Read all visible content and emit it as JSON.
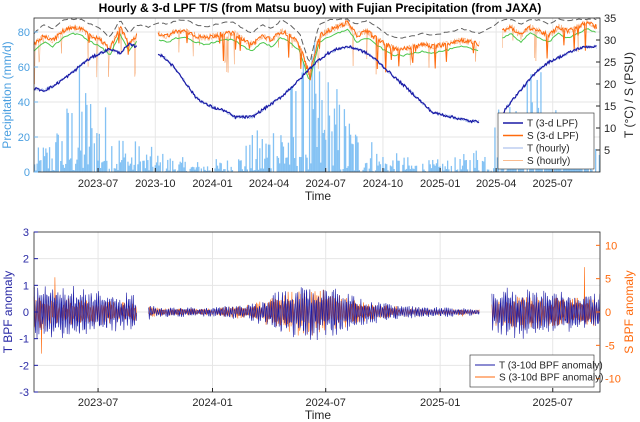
{
  "chart_data": [
    {
      "type": "line",
      "title": "Hourly & 3-d LPF T/S (from Matsu buoy) with Fujian Precipitation (from JAXA)",
      "xlabel": "Time",
      "ylabel_left": "Precipitation (mm/d)",
      "ylabel_right": "T (°C) / S (PSU)",
      "xlim": [
        "2023-03-20",
        "2025-09-15"
      ],
      "xticks": [
        "2023-07",
        "2023-10",
        "2024-01",
        "2024-04",
        "2024-07",
        "2024-10",
        "2025-01",
        "2025-04",
        "2025-07"
      ],
      "ylim_left": [
        0,
        88
      ],
      "yticks_left": [
        "0",
        "20",
        "40",
        "60",
        "80"
      ],
      "ylim_right": [
        0,
        35
      ],
      "yticks_right": [
        "5",
        "10",
        "15",
        "20",
        "25",
        "30",
        "35"
      ],
      "grid": true,
      "legend_position": "lower-right",
      "legend": [
        "T (3-d LPF)",
        "S (3-d LPF)",
        "T (hourly)",
        "S (hourly)"
      ],
      "colors": {
        "precip": "#6fb7f2",
        "temp": "#1a1aa6",
        "sal": "#ff6a0d",
        "envelope": "#606060",
        "green": "#4dc74d"
      },
      "series": [
        {
          "name": "T (3-d LPF)",
          "x": [
            "2023-03-20",
            "2023-04-05",
            "2023-04-20",
            "2023-05-05",
            "2023-05-20",
            "2023-06-05",
            "2023-06-20",
            "2023-07-05",
            "2023-07-20",
            "2023-08-05",
            "2023-08-20",
            "2023-09-01",
            "2023-09-20",
            "2023-10-05",
            "2023-10-20",
            "2023-11-05",
            "2023-11-20",
            "2023-12-05",
            "2023-12-20",
            "2024-01-05",
            "2024-01-20",
            "2024-02-05",
            "2024-02-20",
            "2024-03-05",
            "2024-03-20",
            "2024-04-05",
            "2024-04-20",
            "2024-05-05",
            "2024-05-20",
            "2024-06-05",
            "2024-06-20",
            "2024-07-05",
            "2024-07-20",
            "2024-08-05",
            "2024-08-20",
            "2024-09-05",
            "2024-09-20",
            "2024-10-05",
            "2024-10-20",
            "2024-11-05",
            "2024-11-20",
            "2024-12-05",
            "2024-12-20",
            "2025-01-05",
            "2025-01-20",
            "2025-02-05",
            "2025-02-20",
            "2025-03-05",
            "2025-03-25",
            "2025-04-10",
            "2025-04-25",
            "2025-05-10",
            "2025-05-25",
            "2025-06-10",
            "2025-06-25",
            "2025-07-10",
            "2025-07-25",
            "2025-08-10",
            "2025-08-25",
            "2025-09-10"
          ],
          "y": [
            19,
            18.5,
            19.5,
            21,
            22.5,
            24.5,
            26,
            27,
            28,
            27,
            29,
            28.5,
            null,
            27,
            25.5,
            23,
            20,
            17,
            15.5,
            14.5,
            14,
            12.5,
            12.5,
            12.5,
            14,
            15.5,
            17,
            19,
            21,
            23.5,
            25.5,
            27,
            28,
            28.5,
            28,
            27,
            25.5,
            23.5,
            21.5,
            19.5,
            17.5,
            15.5,
            13.5,
            13,
            12.5,
            12,
            11.5,
            11.5,
            null,
            13,
            16,
            18.5,
            21,
            23.5,
            25,
            26,
            27,
            28,
            28.5,
            28.5
          ]
        },
        {
          "name": "S (3-d LPF)",
          "x": [
            "2023-03-20",
            "2023-04-05",
            "2023-04-20",
            "2023-05-05",
            "2023-05-20",
            "2023-06-05",
            "2023-06-20",
            "2023-07-05",
            "2023-07-20",
            "2023-08-05",
            "2023-08-20",
            "2023-09-01",
            "2023-09-20",
            "2023-10-05",
            "2023-10-20",
            "2023-11-05",
            "2023-11-20",
            "2023-12-05",
            "2023-12-20",
            "2024-01-05",
            "2024-01-20",
            "2024-02-05",
            "2024-02-20",
            "2024-03-05",
            "2024-03-20",
            "2024-04-05",
            "2024-04-20",
            "2024-05-05",
            "2024-05-20",
            "2024-06-05",
            "2024-06-20",
            "2024-07-05",
            "2024-07-20",
            "2024-08-05",
            "2024-08-20",
            "2024-09-05",
            "2024-09-20",
            "2024-10-05",
            "2024-10-20",
            "2024-11-05",
            "2024-11-20",
            "2024-12-05",
            "2024-12-20",
            "2025-01-05",
            "2025-01-20",
            "2025-02-05",
            "2025-02-20",
            "2025-03-05",
            "2025-03-25",
            "2025-04-10",
            "2025-04-25",
            "2025-05-10",
            "2025-05-25",
            "2025-06-10",
            "2025-06-25",
            "2025-07-10",
            "2025-07-25",
            "2025-08-10",
            "2025-08-25",
            "2025-09-10"
          ],
          "y": [
            29,
            31,
            30,
            32,
            33,
            32.5,
            31,
            30,
            28,
            33,
            29,
            31,
            null,
            31.5,
            31,
            32,
            32,
            31,
            30.5,
            31,
            31.5,
            31.5,
            30,
            29,
            31,
            30,
            32,
            31,
            29,
            22,
            31,
            32,
            33,
            34,
            31,
            32,
            30.5,
            29,
            28,
            28,
            28.5,
            29,
            28.5,
            29,
            29.5,
            30,
            29.5,
            29,
            null,
            32,
            33,
            31,
            33,
            32,
            31,
            33,
            32,
            33,
            34,
            33
          ]
        },
        {
          "name": "T (hourly)",
          "x": [
            "2023-03-20",
            "2023-05-20",
            "2023-07-20",
            "2023-09-01",
            "2023-09-20",
            "2024-01-20",
            "2024-04-05",
            "2024-07-20",
            "2024-10-05",
            "2025-01-20",
            "2025-03-05",
            "2025-03-25",
            "2025-05-10",
            "2025-07-25",
            "2025-09-10"
          ],
          "y": [
            19,
            22.5,
            28,
            28.5,
            null,
            14,
            15.5,
            28,
            23.5,
            12.5,
            11.5,
            null,
            18.5,
            27,
            28.5
          ]
        },
        {
          "name": "S (hourly)",
          "x": [
            "2023-03-20",
            "2023-05-20",
            "2023-07-20",
            "2023-09-01",
            "2023-09-20",
            "2024-01-20",
            "2024-04-05",
            "2024-06-05",
            "2024-07-20",
            "2024-10-05",
            "2025-01-20",
            "2025-03-05",
            "2025-03-25",
            "2025-05-10",
            "2025-07-25",
            "2025-09-10"
          ],
          "y": [
            29,
            33,
            28,
            31,
            null,
            31.5,
            30,
            20,
            33,
            29,
            29.5,
            29,
            null,
            31,
            32,
            33
          ]
        }
      ],
      "precip_daily_profile": {
        "x": [
          "2023-03-20",
          "2023-05-01",
          "2023-06-01",
          "2023-07-01",
          "2023-08-15",
          "2023-10-01",
          "2023-12-01",
          "2024-02-01",
          "2024-03-15",
          "2024-04-15",
          "2024-05-15",
          "2024-06-15",
          "2024-07-15",
          "2024-08-15",
          "2024-10-01",
          "2024-12-01",
          "2025-02-01",
          "2025-03-15",
          "2025-04-15",
          "2025-05-15",
          "2025-06-15",
          "2025-07-15",
          "2025-08-15",
          "2025-09-15"
        ],
        "y": [
          5,
          15,
          30,
          22,
          10,
          6,
          3,
          4,
          12,
          20,
          28,
          35,
          25,
          15,
          6,
          3,
          4,
          10,
          25,
          30,
          28,
          18,
          12,
          8
        ]
      }
    },
    {
      "type": "line",
      "title": "",
      "xlabel": "Time",
      "ylabel_left": "T BPF anomaly",
      "ylabel_right": "S BPF anomaly",
      "xlim": [
        "2023-03-20",
        "2025-09-15"
      ],
      "xticks": [
        "2023-07",
        "2024-01",
        "2024-07",
        "2025-01",
        "2025-07"
      ],
      "ylim_left": [
        -3,
        3
      ],
      "yticks_left": [
        "-3",
        "-2",
        "-1",
        "0",
        "1",
        "2",
        "3"
      ],
      "ylim_right": [
        -12,
        12
      ],
      "yticks_right": [
        "-10",
        "-5",
        "0",
        "5",
        "10"
      ],
      "grid": true,
      "legend_position": "lower-right",
      "legend": [
        "T (3-10d BPF anomaly)",
        "S (3-10d BPF anomaly)"
      ],
      "colors": {
        "t": "#1a1aa6",
        "s": "#ff6a0d"
      },
      "amplitude_envelope": {
        "x": [
          "2023-03-20",
          "2023-05-01",
          "2023-07-01",
          "2023-08-15",
          "2023-09-01",
          "2023-10-01",
          "2024-01-01",
          "2024-03-01",
          "2024-04-15",
          "2024-06-01",
          "2024-07-15",
          "2024-09-01",
          "2024-11-01",
          "2025-01-01",
          "2025-03-05",
          "2025-03-25",
          "2025-05-15",
          "2025-07-15",
          "2025-09-15"
        ],
        "t": [
          0.9,
          0.8,
          0.7,
          0.6,
          0.5,
          0.15,
          0.15,
          0.25,
          0.6,
          0.9,
          0.8,
          0.4,
          0.2,
          0.15,
          0.1,
          0.7,
          0.8,
          0.6,
          0.6
        ],
        "s": [
          2.5,
          1.6,
          1.6,
          1.2,
          1.0,
          0.5,
          0.4,
          1.0,
          2.0,
          3.2,
          2.2,
          1.2,
          0.6,
          0.4,
          0.3,
          1.6,
          2.0,
          1.8,
          1.6
        ]
      },
      "gaps": [
        [
          "2023-09-01",
          "2023-09-20"
        ],
        [
          "2025-03-05",
          "2025-03-25"
        ]
      ]
    }
  ]
}
